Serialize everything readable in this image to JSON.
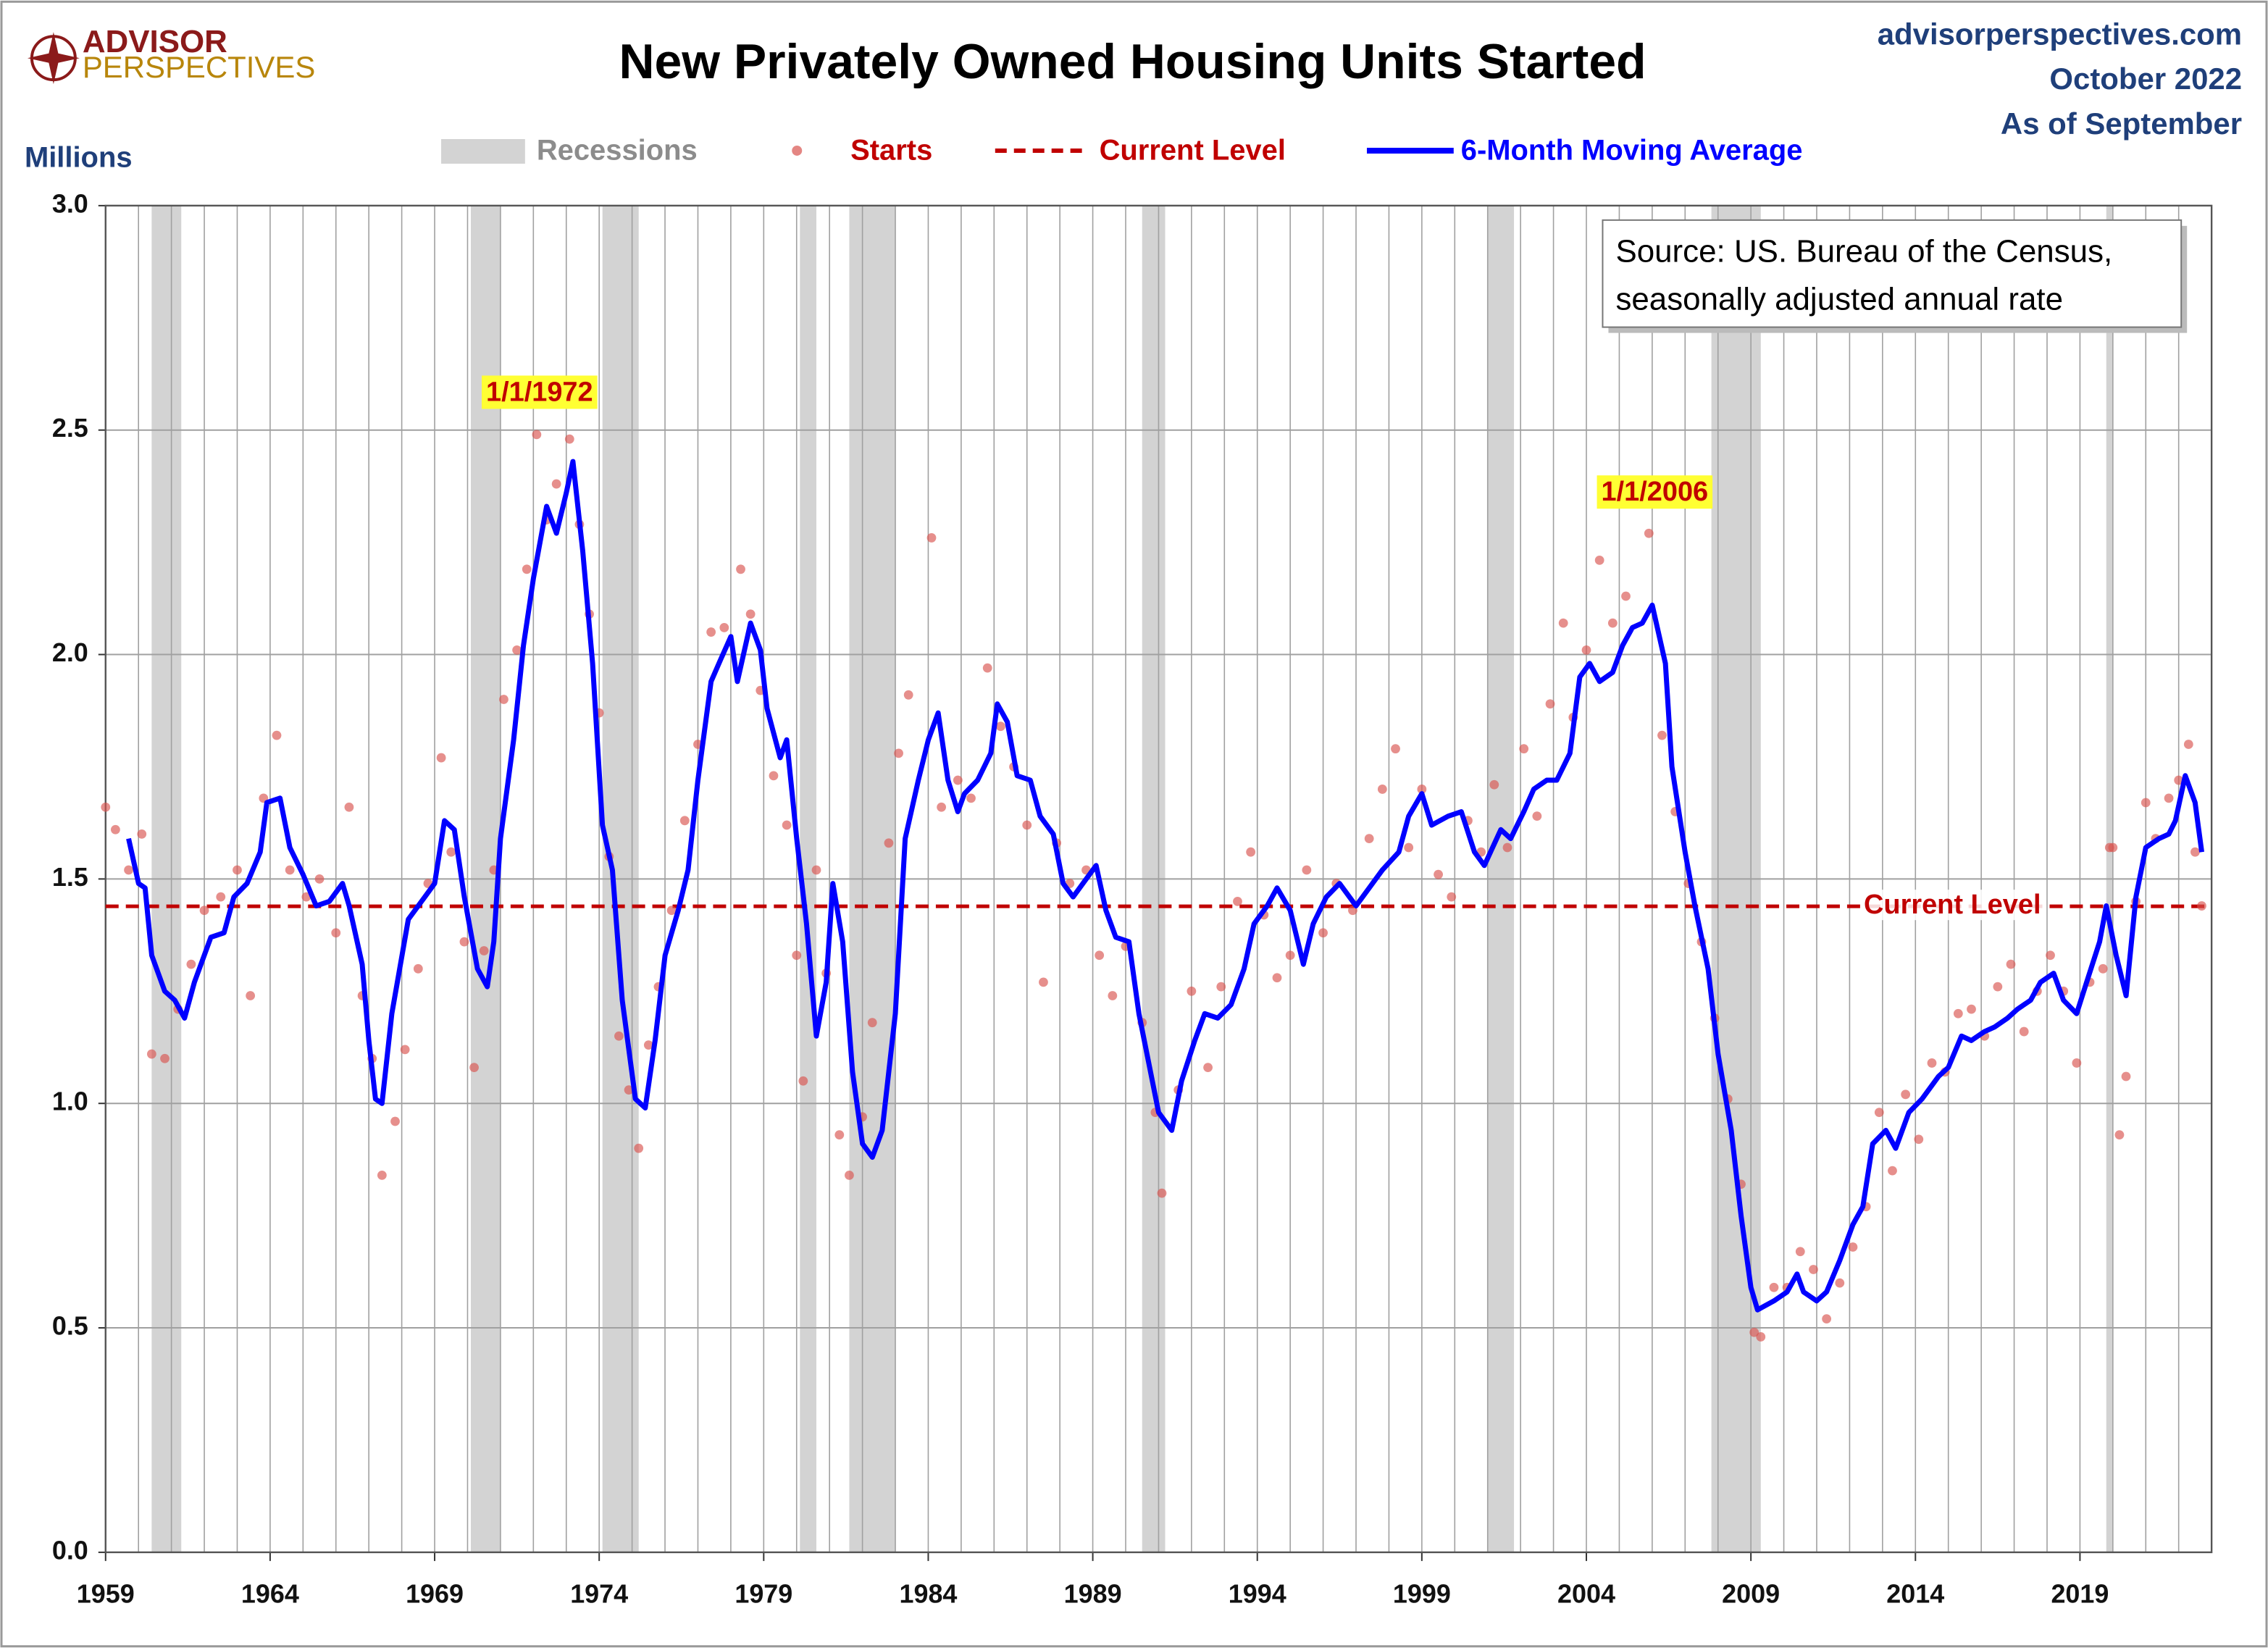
{
  "header": {
    "logo": [
      "ADVISOR",
      "PERSPECTIVES"
    ],
    "site": "advisorperspectives.com",
    "date": "October 2022",
    "as_of": "As of September"
  },
  "chart_data": {
    "type": "line",
    "title": "New Privately Owned Housing Units Started",
    "ylabel": "Millions",
    "source": [
      "Source: US. Bureau of the Census,",
      "seasonally adjusted annual rate"
    ],
    "xlim": [
      1959,
      2023
    ],
    "xticks": [
      1959,
      1964,
      1969,
      1974,
      1979,
      1984,
      1989,
      1994,
      1999,
      2004,
      2009,
      2014,
      2019
    ],
    "x_minor_step": 1,
    "ylim": [
      0,
      3
    ],
    "yticks": [
      {
        "value": 0,
        "label": "0.0"
      },
      0.5,
      {
        "value": 1,
        "label": "1.0"
      },
      1.5,
      {
        "value": 2,
        "label": "2.0"
      },
      2.5,
      {
        "value": 3,
        "label": "3.0"
      }
    ],
    "grid": true,
    "recessions": {
      "name": "Recessions",
      "color": "#d3d3d3",
      "ranges": [
        [
          1960.4,
          1961.3
        ],
        [
          1970.1,
          1971.0
        ],
        [
          1974.1,
          1975.2
        ],
        [
          1980.1,
          1980.6
        ],
        [
          1981.6,
          1983.0
        ],
        [
          1990.5,
          1991.2
        ],
        [
          2001.0,
          2001.8
        ],
        [
          2007.8,
          2009.3
        ],
        [
          2019.8,
          2020.0
        ]
      ]
    },
    "current_level": {
      "name": "Current Level",
      "value": 1.439,
      "color": "#c00000"
    },
    "annotations": [
      {
        "text": "1/1/1972"
      },
      {
        "text": "1/1/2006"
      }
    ],
    "series": [
      {
        "name": "Starts",
        "kind": "scatter",
        "color": "#d9534f",
        "x": [
          1959.0,
          1959.3,
          1959.7,
          1960.1,
          1960.4,
          1960.8,
          1961.2,
          1961.6,
          1962.0,
          1962.5,
          1963.0,
          1963.4,
          1963.8,
          1964.2,
          1964.6,
          1965.1,
          1965.5,
          1966.0,
          1966.4,
          1966.8,
          1967.1,
          1967.4,
          1967.8,
          1968.1,
          1968.5,
          1968.8,
          1969.2,
          1969.5,
          1969.9,
          1970.2,
          1970.5,
          1970.8,
          1971.1,
          1971.5,
          1971.8,
          1972.1,
          1972.4,
          1972.7,
          1973.1,
          1973.4,
          1973.7,
          1974.0,
          1974.3,
          1974.6,
          1974.9,
          1975.2,
          1975.5,
          1975.8,
          1976.2,
          1976.6,
          1977.0,
          1977.4,
          1977.8,
          1978.3,
          1978.6,
          1978.9,
          1979.3,
          1979.7,
          1980.0,
          1980.2,
          1980.6,
          1980.9,
          1981.3,
          1981.6,
          1982.0,
          1982.3,
          1982.8,
          1983.1,
          1983.4,
          1984.1,
          1984.4,
          1984.9,
          1985.3,
          1985.8,
          1986.2,
          1986.6,
          1987.0,
          1987.5,
          1987.9,
          1988.3,
          1988.8,
          1989.2,
          1989.6,
          1990.0,
          1990.5,
          1990.9,
          1991.1,
          1991.6,
          1992.0,
          1992.5,
          1992.9,
          1993.4,
          1993.8,
          1994.2,
          1994.6,
          1995.0,
          1995.5,
          1996.0,
          1996.4,
          1996.9,
          1997.4,
          1997.8,
          1998.2,
          1998.6,
          1999.0,
          1999.5,
          1999.9,
          2000.4,
          2000.8,
          2001.2,
          2001.6,
          2002.1,
          2002.5,
          2002.9,
          2003.3,
          2003.6,
          2004.0,
          2004.4,
          2004.8,
          2005.2,
          2005.9,
          2006.3,
          2006.7,
          2007.1,
          2007.5,
          2007.9,
          2008.3,
          2008.7,
          2009.1,
          2009.3,
          2009.7,
          2010.1,
          2010.5,
          2010.9,
          2011.3,
          2011.7,
          2012.1,
          2012.5,
          2012.9,
          2013.3,
          2013.7,
          2014.1,
          2014.5,
          2014.9,
          2015.3,
          2015.7,
          2016.1,
          2016.5,
          2016.9,
          2017.3,
          2017.7,
          2018.1,
          2018.5,
          2018.9,
          2019.3,
          2019.7,
          2019.9,
          2020.0,
          2020.2,
          2020.4,
          2020.7,
          2021.0,
          2021.3,
          2021.7,
          2022.0,
          2022.3,
          2022.5,
          2022.7
        ],
        "values": [
          1.66,
          1.61,
          1.52,
          1.6,
          1.11,
          1.1,
          1.21,
          1.31,
          1.43,
          1.46,
          1.52,
          1.24,
          1.68,
          1.82,
          1.52,
          1.46,
          1.5,
          1.38,
          1.66,
          1.24,
          1.1,
          0.84,
          0.96,
          1.12,
          1.3,
          1.49,
          1.77,
          1.56,
          1.36,
          1.08,
          1.34,
          1.52,
          1.9,
          2.01,
          2.19,
          2.49,
          2.3,
          2.38,
          2.48,
          2.29,
          2.09,
          1.87,
          1.55,
          1.15,
          1.03,
          0.9,
          1.13,
          1.26,
          1.43,
          1.63,
          1.8,
          2.05,
          2.06,
          2.19,
          2.09,
          1.92,
          1.73,
          1.62,
          1.33,
          1.05,
          1.52,
          1.29,
          0.93,
          0.84,
          0.97,
          1.18,
          1.58,
          1.78,
          1.91,
          2.26,
          1.66,
          1.72,
          1.68,
          1.97,
          1.84,
          1.75,
          1.62,
          1.27,
          1.58,
          1.49,
          1.52,
          1.33,
          1.24,
          1.35,
          1.18,
          0.98,
          0.8,
          1.03,
          1.25,
          1.08,
          1.26,
          1.45,
          1.56,
          1.42,
          1.28,
          1.33,
          1.52,
          1.38,
          1.49,
          1.43,
          1.59,
          1.7,
          1.79,
          1.57,
          1.7,
          1.51,
          1.46,
          1.63,
          1.56,
          1.71,
          1.57,
          1.79,
          1.64,
          1.89,
          2.07,
          1.86,
          2.01,
          2.21,
          2.07,
          2.13,
          2.27,
          1.82,
          1.65,
          1.49,
          1.36,
          1.19,
          1.01,
          0.82,
          0.49,
          0.48,
          0.59,
          0.59,
          0.67,
          0.63,
          0.52,
          0.6,
          0.68,
          0.77,
          0.98,
          0.85,
          1.02,
          0.92,
          1.09,
          1.07,
          1.2,
          1.21,
          1.15,
          1.26,
          1.31,
          1.16,
          1.25,
          1.33,
          1.25,
          1.09,
          1.27,
          1.3,
          1.57,
          1.57,
          0.93,
          1.06,
          1.45,
          1.67,
          1.59,
          1.68,
          1.72,
          1.8,
          1.56,
          1.44
        ]
      },
      {
        "name": "6-Month Moving Average",
        "kind": "line",
        "color": "#0000ff",
        "x": [
          1959.7,
          1960.0,
          1960.2,
          1960.4,
          1960.8,
          1961.1,
          1961.4,
          1961.7,
          1962.2,
          1962.6,
          1962.9,
          1963.3,
          1963.7,
          1963.9,
          1964.3,
          1964.6,
          1965.0,
          1965.4,
          1965.8,
          1966.2,
          1966.4,
          1966.8,
          1967.0,
          1967.2,
          1967.4,
          1967.7,
          1968.2,
          1968.7,
          1969.0,
          1969.3,
          1969.6,
          1969.9,
          1970.3,
          1970.6,
          1970.8,
          1971.0,
          1971.4,
          1971.7,
          1972.0,
          1972.4,
          1972.7,
          1973.0,
          1973.2,
          1973.5,
          1973.8,
          1974.1,
          1974.4,
          1974.7,
          1975.1,
          1975.4,
          1975.7,
          1976.0,
          1976.4,
          1976.7,
          1977.0,
          1977.4,
          1977.7,
          1978.0,
          1978.2,
          1978.6,
          1978.9,
          1979.1,
          1979.5,
          1979.7,
          1980.0,
          1980.3,
          1980.6,
          1980.9,
          1981.1,
          1981.4,
          1981.7,
          1982.0,
          1982.3,
          1982.6,
          1983.0,
          1983.3,
          1983.7,
          1984.0,
          1984.3,
          1984.6,
          1984.9,
          1985.1,
          1985.5,
          1985.9,
          1986.1,
          1986.4,
          1986.7,
          1987.1,
          1987.4,
          1987.8,
          1988.1,
          1988.4,
          1988.7,
          1989.1,
          1989.4,
          1989.7,
          1990.1,
          1990.4,
          1990.7,
          1991.0,
          1991.4,
          1991.7,
          1992.1,
          1992.4,
          1992.8,
          1993.2,
          1993.6,
          1993.9,
          1994.3,
          1994.6,
          1995.0,
          1995.4,
          1995.7,
          1996.1,
          1996.5,
          1997.0,
          1997.4,
          1997.8,
          1998.3,
          1998.6,
          1999.0,
          1999.3,
          1999.8,
          2000.2,
          2000.6,
          2000.9,
          2001.4,
          2001.7,
          2002.1,
          2002.4,
          2002.8,
          2003.1,
          2003.5,
          2003.8,
          2004.1,
          2004.4,
          2004.8,
          2005.1,
          2005.4,
          2005.7,
          2006.0,
          2006.4,
          2006.6,
          2007.0,
          2007.3,
          2007.7,
          2008.0,
          2008.4,
          2008.7,
          2009.0,
          2009.2,
          2009.7,
          2010.1,
          2010.4,
          2010.6,
          2011.0,
          2011.3,
          2011.7,
          2012.1,
          2012.4,
          2012.7,
          2013.1,
          2013.4,
          2013.8,
          2014.2,
          2014.7,
          2015.0,
          2015.4,
          2015.7,
          2016.1,
          2016.4,
          2016.8,
          2017.1,
          2017.5,
          2017.8,
          2018.2,
          2018.5,
          2018.9,
          2019.2,
          2019.6,
          2019.8,
          2020.1,
          2020.4,
          2020.7,
          2021.0,
          2021.4,
          2021.7,
          2021.9,
          2022.2,
          2022.5,
          2022.7
        ],
        "values": [
          1.59,
          1.49,
          1.48,
          1.33,
          1.25,
          1.23,
          1.19,
          1.27,
          1.37,
          1.38,
          1.46,
          1.49,
          1.56,
          1.67,
          1.68,
          1.57,
          1.51,
          1.44,
          1.45,
          1.49,
          1.44,
          1.31,
          1.14,
          1.01,
          1.0,
          1.2,
          1.41,
          1.46,
          1.49,
          1.63,
          1.61,
          1.46,
          1.3,
          1.26,
          1.36,
          1.59,
          1.81,
          2.02,
          2.17,
          2.33,
          2.27,
          2.36,
          2.43,
          2.23,
          1.98,
          1.62,
          1.52,
          1.23,
          1.01,
          0.99,
          1.14,
          1.33,
          1.43,
          1.52,
          1.72,
          1.94,
          1.99,
          2.04,
          1.94,
          2.07,
          2.01,
          1.88,
          1.77,
          1.81,
          1.59,
          1.4,
          1.15,
          1.27,
          1.49,
          1.36,
          1.07,
          0.91,
          0.88,
          0.94,
          1.2,
          1.59,
          1.72,
          1.81,
          1.87,
          1.72,
          1.65,
          1.69,
          1.72,
          1.78,
          1.89,
          1.85,
          1.73,
          1.72,
          1.64,
          1.6,
          1.49,
          1.46,
          1.49,
          1.53,
          1.43,
          1.37,
          1.36,
          1.2,
          1.09,
          0.98,
          0.94,
          1.05,
          1.14,
          1.2,
          1.19,
          1.22,
          1.3,
          1.4,
          1.44,
          1.48,
          1.43,
          1.31,
          1.4,
          1.46,
          1.49,
          1.44,
          1.48,
          1.52,
          1.56,
          1.64,
          1.69,
          1.62,
          1.64,
          1.65,
          1.56,
          1.53,
          1.61,
          1.59,
          1.65,
          1.7,
          1.72,
          1.72,
          1.78,
          1.95,
          1.98,
          1.94,
          1.96,
          2.02,
          2.06,
          2.07,
          2.11,
          1.98,
          1.75,
          1.56,
          1.44,
          1.3,
          1.11,
          0.94,
          0.75,
          0.59,
          0.54,
          0.56,
          0.58,
          0.62,
          0.58,
          0.56,
          0.58,
          0.65,
          0.73,
          0.77,
          0.91,
          0.94,
          0.9,
          0.98,
          1.01,
          1.06,
          1.08,
          1.15,
          1.14,
          1.16,
          1.17,
          1.19,
          1.21,
          1.23,
          1.27,
          1.29,
          1.23,
          1.2,
          1.27,
          1.36,
          1.44,
          1.33,
          1.24,
          1.46,
          1.57,
          1.59,
          1.6,
          1.63,
          1.73,
          1.67,
          1.56
        ]
      }
    ]
  }
}
